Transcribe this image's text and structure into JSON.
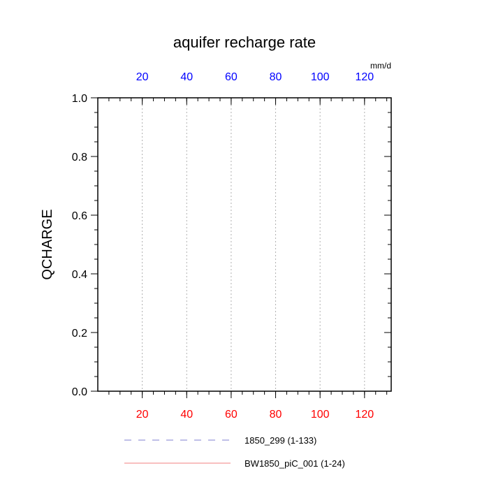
{
  "chart_data": {
    "type": "line",
    "title": "aquifer recharge rate",
    "ylabel": "QCHARGE",
    "top_axis_units": "mm/d",
    "xlim": [
      0,
      132
    ],
    "ylim": [
      0,
      1
    ],
    "x_ticks": [
      20,
      40,
      60,
      80,
      100,
      120
    ],
    "x_tick_labels": [
      "20",
      "40",
      "60",
      "80",
      "100",
      "120"
    ],
    "x_minor_step": 5,
    "y_ticks": [
      0,
      0.2,
      0.4,
      0.6,
      0.8,
      1.0
    ],
    "y_tick_labels": [
      "0.0",
      "0.2",
      "0.4",
      "0.6",
      "0.8",
      "1.0"
    ],
    "y_minor_step": 0.05,
    "grid_x": true,
    "bottom_tick_color": "#ff0000",
    "top_tick_color": "#0000ff",
    "legend_position": "bottom",
    "series": [
      {
        "name": "1850_299 (1-133)",
        "color": "#8080d0",
        "dash": "dashed",
        "x": [
          1,
          133
        ],
        "y": [
          0,
          0
        ]
      },
      {
        "name": "BW1850_piC_001 (1-24)",
        "color": "#f08080",
        "dash": "solid",
        "x": [
          1,
          24
        ],
        "y": [
          0,
          0
        ]
      }
    ]
  }
}
